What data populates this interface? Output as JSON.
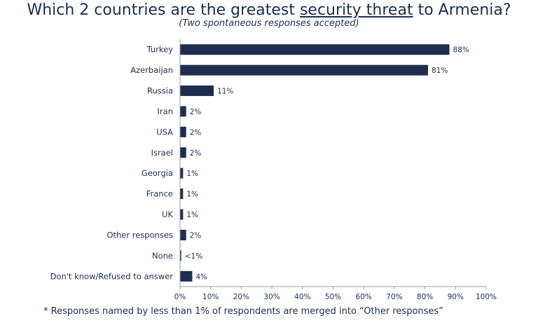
{
  "header": {
    "title_before": "Which 2 countries are the greatest ",
    "title_underlined": "security threat",
    "title_after": " to Armenia?",
    "subtitle": "(Two spontaneous responses accepted)"
  },
  "footnote": "* Responses named by less than 1% of respondents are merged into “Other responses”",
  "colors": {
    "bar": "#1f2d4e",
    "axis": "#9aa0a6",
    "text": "#1c2e52"
  },
  "chart_data": {
    "type": "bar",
    "orientation": "horizontal",
    "categories": [
      "Turkey",
      "Azerbaijan",
      "Russia",
      "Iran",
      "USA",
      "Israel",
      "Georgia",
      "France",
      "UK",
      "Other responses",
      "None",
      "Don't know/Refused to answer"
    ],
    "values": [
      88,
      81,
      11,
      2,
      2,
      2,
      1,
      1,
      1,
      2,
      0.4,
      4
    ],
    "value_labels": [
      "88%",
      "81%",
      "11%",
      "2%",
      "2%",
      "2%",
      "1%",
      "1%",
      "1%",
      "2%",
      "<1%",
      "4%"
    ],
    "xlim": [
      0,
      100
    ],
    "xticks": [
      0,
      10,
      20,
      30,
      40,
      50,
      60,
      70,
      80,
      90,
      100
    ],
    "xtick_labels": [
      "0%",
      "10%",
      "20%",
      "30%",
      "40%",
      "50%",
      "60%",
      "70%",
      "80%",
      "90%",
      "100%"
    ],
    "grid": false,
    "legend": "none"
  }
}
